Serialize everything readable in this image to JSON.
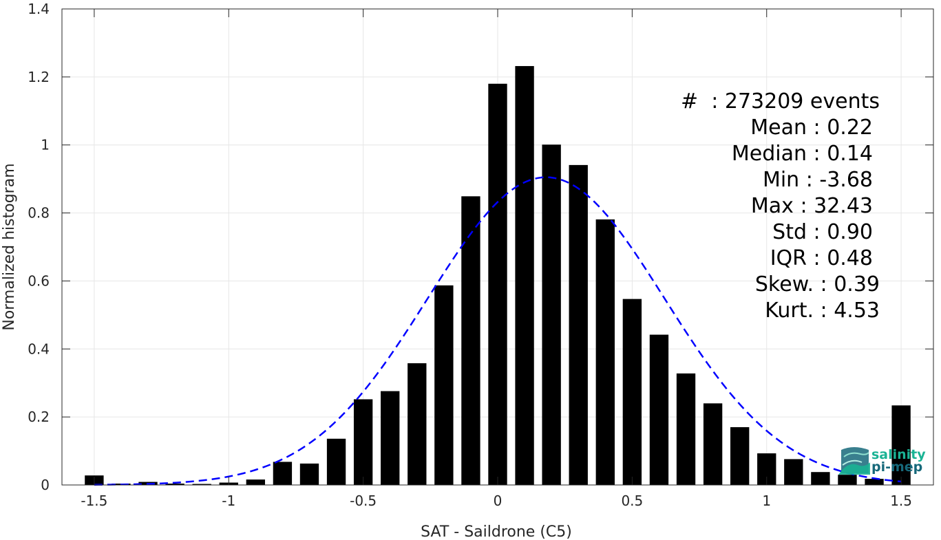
{
  "chart_data": {
    "type": "bar",
    "title": "",
    "xlabel": "SAT - Saildrone (C5)",
    "ylabel": "Normalized histogram",
    "xlim": [
      -1.62,
      1.62
    ],
    "ylim": [
      0,
      1.4
    ],
    "grid": true,
    "x_ticks": [
      -1.5,
      -1,
      -0.5,
      0,
      0.5,
      1,
      1.5
    ],
    "x_tick_labels": [
      "-1.5",
      "-1",
      "-0.5",
      "0",
      "0.5",
      "1",
      "1.5"
    ],
    "y_ticks": [
      0,
      0.2,
      0.4,
      0.6,
      0.8,
      1,
      1.2,
      1.4
    ],
    "y_tick_labels": [
      "0",
      "0.2",
      "0.4",
      "0.6",
      "0.8",
      "1",
      "1.2",
      "1.4"
    ],
    "bar_color": "#000000",
    "bar_width": 0.07,
    "x": [
      -1.5,
      -1.4,
      -1.3,
      -1.2,
      -1.1,
      -1.0,
      -0.9,
      -0.8,
      -0.7,
      -0.6,
      -0.5,
      -0.4,
      -0.3,
      -0.2,
      -0.1,
      0.0,
      0.1,
      0.2,
      0.3,
      0.4,
      0.5,
      0.6,
      0.7,
      0.8,
      0.9,
      1.0,
      1.1,
      1.2,
      1.3,
      1.4,
      1.5
    ],
    "values": [
      0.028,
      0.004,
      0.009,
      0.004,
      0.003,
      0.007,
      0.016,
      0.068,
      0.063,
      0.136,
      0.252,
      0.276,
      0.358,
      0.587,
      0.849,
      1.18,
      1.232,
      1.001,
      0.941,
      0.781,
      0.547,
      0.442,
      0.328,
      0.24,
      0.17,
      0.093,
      0.076,
      0.038,
      0.03,
      0.018,
      0.234
    ],
    "fit": {
      "name": "Gaussian fit",
      "mean": 0.18,
      "std": 0.44,
      "peak": 0.905,
      "color": "#0000ff",
      "style": "dashed",
      "x_range": [
        -1.5,
        1.5
      ]
    },
    "annotations": [
      {
        "label": "#  ",
        "value": ": 273209 events"
      },
      {
        "label": "Mean ",
        "value": ": 0.22"
      },
      {
        "label": "Median ",
        "value": ": 0.14"
      },
      {
        "label": "Min ",
        "value": ": -3.68"
      },
      {
        "label": "Max ",
        "value": ": 32.43"
      },
      {
        "label": "Std ",
        "value": ": 0.90"
      },
      {
        "label": "IQR ",
        "value": ": 0.48"
      },
      {
        "label": "Skew. ",
        "value": ": 0.39"
      },
      {
        "label": "Kurt. ",
        "value": ": 4.53"
      }
    ]
  },
  "logo": {
    "line1": "salinity",
    "line2": "pi-mep",
    "color_primary": "#1ab394",
    "color_secondary": "#16687a"
  }
}
